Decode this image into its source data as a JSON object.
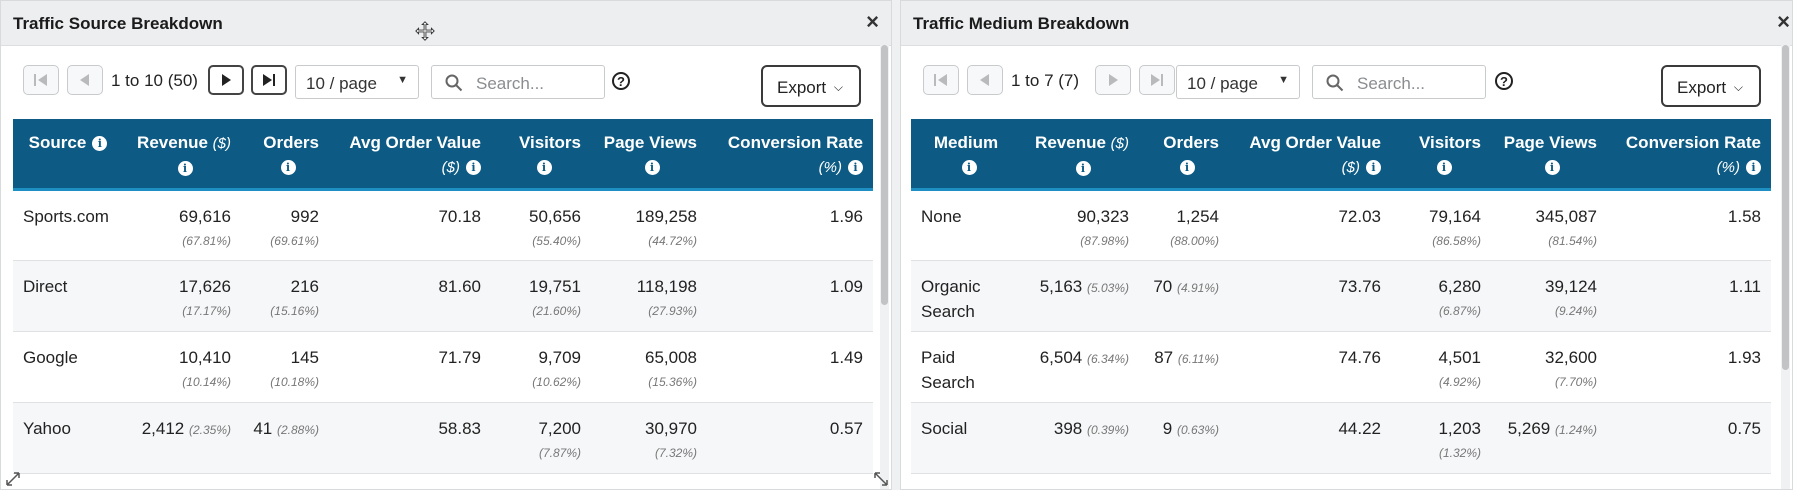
{
  "left": {
    "title": "Traffic Source Breakdown",
    "close": "×",
    "range": "1 to 10 (50)",
    "per_page": "10 / page",
    "search_placeholder": "Search...",
    "help": "?",
    "export": "Export",
    "columns": [
      {
        "label": "Source",
        "unit": ""
      },
      {
        "label": "Revenue",
        "unit": "($)"
      },
      {
        "label": "Orders",
        "unit": ""
      },
      {
        "label": "Avg Order Value",
        "unit": "($)"
      },
      {
        "label": "Visitors",
        "unit": ""
      },
      {
        "label": "Page Views",
        "unit": ""
      },
      {
        "label": "Conversion Rate",
        "unit": "(%)"
      }
    ],
    "rows": [
      {
        "name": "Sports.com",
        "revenue": "69,616",
        "revenue_pct": "(67.81%)",
        "orders": "992",
        "orders_pct": "(69.61%)",
        "aov": "70.18",
        "visitors": "50,656",
        "visitors_pct": "(55.40%)",
        "pageviews": "189,258",
        "pageviews_pct": "(44.72%)",
        "conv": "1.96"
      },
      {
        "name": "Direct",
        "revenue": "17,626",
        "revenue_pct": "(17.17%)",
        "orders": "216",
        "orders_pct": "(15.16%)",
        "aov": "81.60",
        "visitors": "19,751",
        "visitors_pct": "(21.60%)",
        "pageviews": "118,198",
        "pageviews_pct": "(27.93%)",
        "conv": "1.09"
      },
      {
        "name": "Google",
        "revenue": "10,410",
        "revenue_pct": "(10.14%)",
        "orders": "145",
        "orders_pct": "(10.18%)",
        "aov": "71.79",
        "visitors": "9,709",
        "visitors_pct": "(10.62%)",
        "pageviews": "65,008",
        "pageviews_pct": "(15.36%)",
        "conv": "1.49"
      },
      {
        "name": "Yahoo",
        "revenue": "2,412",
        "revenue_pct": "(2.35%)",
        "orders": "41",
        "orders_pct": "(2.88%)",
        "aov": "58.83",
        "visitors": "7,200",
        "visitors_pct": "(7.87%)",
        "pageviews": "30,970",
        "pageviews_pct": "(7.32%)",
        "conv": "0.57"
      }
    ]
  },
  "right": {
    "title": "Traffic Medium Breakdown",
    "close": "×",
    "range": "1 to 7 (7)",
    "per_page": "10 / page",
    "search_placeholder": "Search...",
    "help": "?",
    "export": "Export",
    "columns": [
      {
        "label": "Medium",
        "unit": ""
      },
      {
        "label": "Revenue",
        "unit": "($)"
      },
      {
        "label": "Orders",
        "unit": ""
      },
      {
        "label": "Avg Order Value",
        "unit": "($)"
      },
      {
        "label": "Visitors",
        "unit": ""
      },
      {
        "label": "Page Views",
        "unit": ""
      },
      {
        "label": "Conversion Rate",
        "unit": "(%)"
      }
    ],
    "rows": [
      {
        "name": "None",
        "revenue": "90,323",
        "revenue_pct": "(87.98%)",
        "orders": "1,254",
        "orders_pct": "(88.00%)",
        "aov": "72.03",
        "visitors": "79,164",
        "visitors_pct": "(86.58%)",
        "pageviews": "345,087",
        "pageviews_pct": "(81.54%)",
        "conv": "1.58"
      },
      {
        "name": "Organic Search",
        "revenue": "5,163",
        "revenue_pct": "(5.03%)",
        "orders": "70",
        "orders_pct": "(4.91%)",
        "aov": "73.76",
        "visitors": "6,280",
        "visitors_pct": "(6.87%)",
        "pageviews": "39,124",
        "pageviews_pct": "(9.24%)",
        "conv": "1.11"
      },
      {
        "name": "Paid Search",
        "revenue": "6,504",
        "revenue_pct": "(6.34%)",
        "orders": "87",
        "orders_pct": "(6.11%)",
        "aov": "74.76",
        "visitors": "4,501",
        "visitors_pct": "(4.92%)",
        "pageviews": "32,600",
        "pageviews_pct": "(7.70%)",
        "conv": "1.93"
      },
      {
        "name": "Social",
        "revenue": "398",
        "revenue_pct": "(0.39%)",
        "orders": "9",
        "orders_pct": "(0.63%)",
        "aov": "44.22",
        "visitors": "1,203",
        "visitors_pct": "(1.32%)",
        "pageviews": "5,269",
        "pageviews_pct": "(1.24%)",
        "conv": "0.75"
      }
    ]
  },
  "icons": {
    "info": "i",
    "move": "move-icon",
    "first": "first-page-icon",
    "prev": "prev-page-icon",
    "next": "next-page-icon",
    "last": "last-page-icon",
    "search": "search-icon",
    "caret": "▼",
    "chevron": "⌵"
  },
  "colors": {
    "header_bg": "#0d5b84",
    "header_border": "#1d8fc2",
    "titlebar_bg": "#eceef0"
  }
}
